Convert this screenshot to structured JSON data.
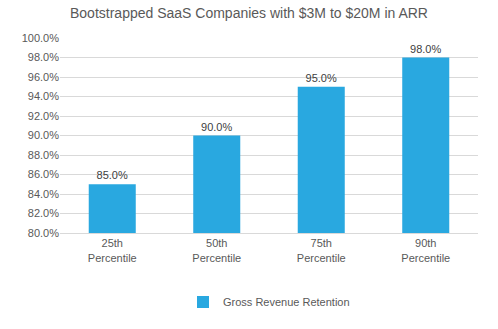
{
  "chart_data": {
    "type": "bar",
    "title": "Bootstrapped SaaS Companies with $3M to $20M in ARR",
    "categories": [
      "25th Percentile",
      "50th Percentile",
      "75th Percentile",
      "90th Percentile"
    ],
    "series": [
      {
        "name": "Gross Revenue Retention",
        "color": "#29a8e0",
        "values": [
          85,
          90,
          95,
          98
        ],
        "value_labels": [
          "85.0%",
          "90.0%",
          "95.0%",
          "98.0%"
        ]
      }
    ],
    "ylim": [
      80,
      100
    ],
    "yticks": [
      {
        "value": 80,
        "label": "80.0%"
      },
      {
        "value": 82,
        "label": "82.0%"
      },
      {
        "value": 84,
        "label": "84.0%"
      },
      {
        "value": 86,
        "label": "86.0%"
      },
      {
        "value": 88,
        "label": "88.0%"
      },
      {
        "value": 90,
        "label": "90.0%"
      },
      {
        "value": 92,
        "label": "92.0%"
      },
      {
        "value": 94,
        "label": "94.0%"
      },
      {
        "value": 96,
        "label": "96.0%"
      },
      {
        "value": 98,
        "label": "98.0%"
      },
      {
        "value": 100,
        "label": "100.0%"
      }
    ],
    "grid": true,
    "data_labels": true,
    "legend": "bottom"
  }
}
